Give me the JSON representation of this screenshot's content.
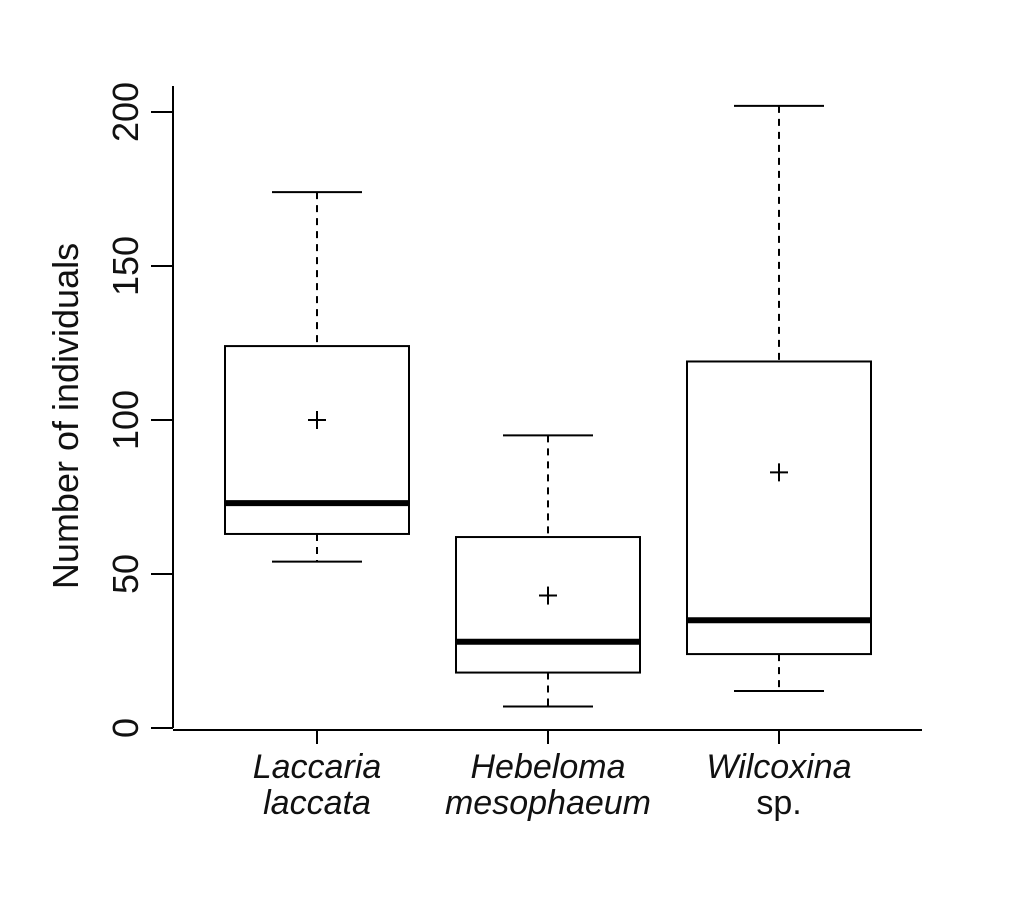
{
  "chart_data": {
    "type": "box",
    "title": "",
    "xlabel": "",
    "ylabel": "Number of individuals",
    "ylim": [
      0,
      200
    ],
    "yticks": [
      0,
      50,
      100,
      150,
      200
    ],
    "grid": false,
    "categories": [
      {
        "line1": "Laccaria",
        "line2": "laccata",
        "italic_line1": true,
        "italic_line2": true
      },
      {
        "line1": "Hebeloma",
        "line2": "mesophaeum",
        "italic_line1": true,
        "italic_line2": true
      },
      {
        "line1": "Wilcoxina",
        "line2": "sp.",
        "italic_line1": true,
        "italic_line2": false
      }
    ],
    "boxes": [
      {
        "min": 54,
        "q1": 63,
        "median": 73,
        "q3": 124,
        "max": 174,
        "mean": 100
      },
      {
        "min": 7,
        "q1": 18,
        "median": 28,
        "q3": 62,
        "max": 95,
        "mean": 43
      },
      {
        "min": 12,
        "q1": 24,
        "median": 35,
        "q3": 119,
        "max": 202,
        "mean": 83
      }
    ],
    "mean_marker": "+"
  }
}
